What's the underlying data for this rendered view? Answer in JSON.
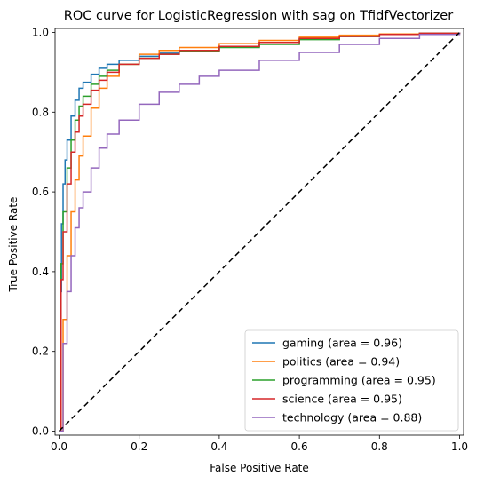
{
  "chart_data": {
    "type": "line",
    "title": "ROC curve for LogisticRegression with sag on TfidfVectorizer",
    "xlabel": "False Positive Rate",
    "ylabel": "True Positive Rate",
    "xlim": [
      -0.01,
      1.01
    ],
    "ylim": [
      -0.01,
      1.01
    ],
    "x_ticks": [
      "0.0",
      "0.2",
      "0.4",
      "0.6",
      "0.8",
      "1.0"
    ],
    "y_ticks": [
      "0.0",
      "0.2",
      "0.4",
      "0.6",
      "0.8",
      "1.0"
    ],
    "legend_position": "lower-right",
    "grid": false,
    "series": [
      {
        "name": "gaming (area = 0.96)",
        "color": "#1f77b4",
        "x": [
          0,
          0.003,
          0.006,
          0.01,
          0.015,
          0.02,
          0.03,
          0.04,
          0.05,
          0.06,
          0.08,
          0.1,
          0.12,
          0.15,
          0.2,
          0.25,
          0.3,
          0.4,
          0.5,
          0.6,
          0.7,
          0.8,
          0.9,
          1.0
        ],
        "y": [
          0,
          0.35,
          0.52,
          0.62,
          0.68,
          0.73,
          0.79,
          0.83,
          0.86,
          0.875,
          0.895,
          0.91,
          0.92,
          0.93,
          0.94,
          0.948,
          0.955,
          0.965,
          0.975,
          0.985,
          0.99,
          0.995,
          0.998,
          1.0
        ]
      },
      {
        "name": "politics (area = 0.94)",
        "color": "#ff7f0e",
        "x": [
          0,
          0.01,
          0.02,
          0.03,
          0.04,
          0.05,
          0.06,
          0.08,
          0.1,
          0.12,
          0.15,
          0.2,
          0.25,
          0.3,
          0.4,
          0.5,
          0.6,
          0.7,
          0.8,
          0.9,
          1.0
        ],
        "y": [
          0,
          0.28,
          0.44,
          0.55,
          0.63,
          0.69,
          0.74,
          0.81,
          0.86,
          0.89,
          0.92,
          0.945,
          0.955,
          0.962,
          0.972,
          0.98,
          0.988,
          0.993,
          0.996,
          0.998,
          1.0
        ]
      },
      {
        "name": "programming (area = 0.95)",
        "color": "#2ca02c",
        "x": [
          0,
          0.005,
          0.01,
          0.02,
          0.03,
          0.04,
          0.05,
          0.06,
          0.08,
          0.1,
          0.12,
          0.15,
          0.2,
          0.25,
          0.3,
          0.4,
          0.5,
          0.6,
          0.7,
          0.8,
          0.9,
          1.0
        ],
        "y": [
          0,
          0.42,
          0.55,
          0.66,
          0.73,
          0.78,
          0.815,
          0.84,
          0.87,
          0.89,
          0.905,
          0.92,
          0.935,
          0.945,
          0.953,
          0.962,
          0.97,
          0.982,
          0.99,
          0.995,
          0.998,
          1.0
        ]
      },
      {
        "name": "science (area = 0.95)",
        "color": "#d62728",
        "x": [
          0,
          0.005,
          0.01,
          0.02,
          0.03,
          0.04,
          0.05,
          0.06,
          0.08,
          0.1,
          0.12,
          0.15,
          0.2,
          0.25,
          0.3,
          0.4,
          0.5,
          0.6,
          0.7,
          0.8,
          0.9,
          1.0
        ],
        "y": [
          0,
          0.38,
          0.5,
          0.62,
          0.7,
          0.75,
          0.79,
          0.82,
          0.855,
          0.88,
          0.9,
          0.92,
          0.935,
          0.945,
          0.955,
          0.965,
          0.975,
          0.985,
          0.99,
          0.995,
          0.998,
          1.0
        ]
      },
      {
        "name": "technology (area = 0.88)",
        "color": "#9467bd",
        "x": [
          0,
          0.01,
          0.02,
          0.03,
          0.04,
          0.05,
          0.06,
          0.08,
          0.1,
          0.12,
          0.15,
          0.2,
          0.25,
          0.3,
          0.35,
          0.4,
          0.5,
          0.6,
          0.7,
          0.8,
          0.9,
          1.0
        ],
        "y": [
          0,
          0.22,
          0.35,
          0.44,
          0.51,
          0.56,
          0.6,
          0.66,
          0.71,
          0.745,
          0.78,
          0.82,
          0.85,
          0.87,
          0.89,
          0.905,
          0.93,
          0.95,
          0.97,
          0.985,
          0.995,
          1.0
        ]
      }
    ],
    "reference_line": {
      "x": [
        0,
        1
      ],
      "y": [
        0,
        1
      ],
      "color": "#000000",
      "style": "dashed"
    }
  }
}
